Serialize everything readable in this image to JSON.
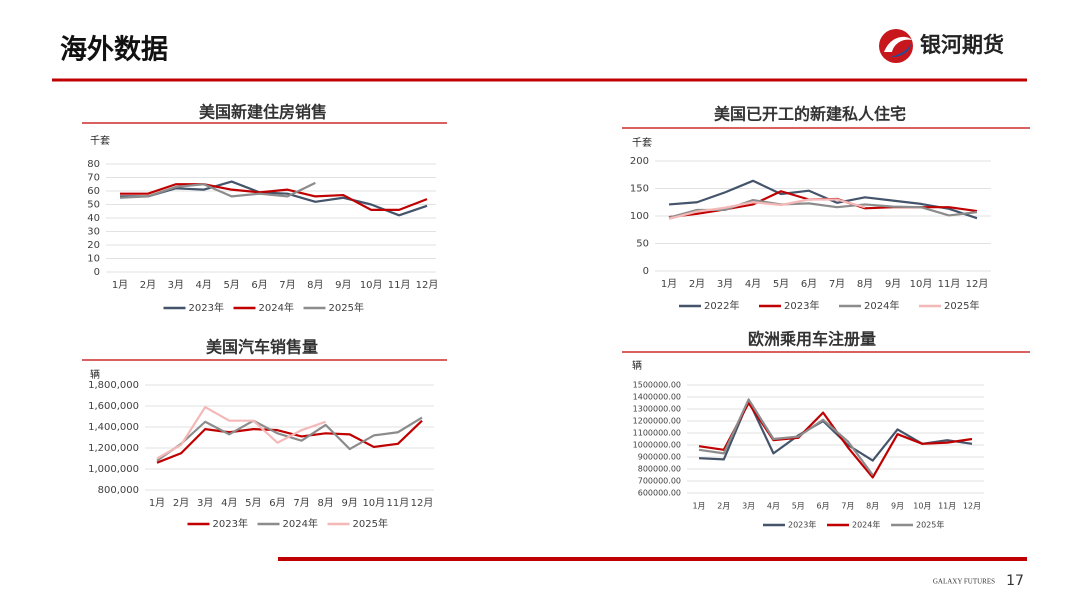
{
  "header": {
    "title": "海外数据",
    "logo": "银河期货"
  },
  "footer": {
    "brand": "GALAXY FUTURES",
    "page": 17
  },
  "chart_data": [
    {
      "type": "line",
      "title": "美国新建住房销售",
      "y_unit": "千套",
      "categories": [
        "1月",
        "2月",
        "3月",
        "4月",
        "5月",
        "6月",
        "7月",
        "8月",
        "9月",
        "10月",
        "11月",
        "12月"
      ],
      "ylim": [
        0,
        80
      ],
      "yticks": [
        0,
        10,
        20,
        30,
        40,
        50,
        60,
        70,
        80
      ],
      "grid": true,
      "series": [
        {
          "name": "2023年",
          "color": "#44546a",
          "values": [
            56,
            56,
            62,
            61,
            67,
            59,
            58,
            52,
            55,
            50,
            42,
            49
          ]
        },
        {
          "name": "2024年",
          "color": "#c00000",
          "values": [
            58,
            58,
            65,
            65,
            61,
            59,
            61,
            56,
            57,
            46,
            46,
            54
          ]
        },
        {
          "name": "2025年",
          "color": "#8c8c8c",
          "values": [
            55,
            56,
            63,
            65,
            56,
            58,
            56,
            66,
            null,
            null,
            null,
            null
          ]
        }
      ]
    },
    {
      "type": "line",
      "title": "美国已开工的新建私人住宅",
      "y_unit": "千套",
      "categories": [
        "1月",
        "2月",
        "3月",
        "4月",
        "5月",
        "6月",
        "7月",
        "8月",
        "9月",
        "10月",
        "11月",
        "12月"
      ],
      "ylim": [
        0,
        200
      ],
      "yticks": [
        0,
        50,
        100,
        150,
        200
      ],
      "grid": true,
      "series": [
        {
          "name": "2022年",
          "color": "#44546a",
          "values": [
            121,
            125,
            143,
            164,
            140,
            146,
            124,
            134,
            128,
            122,
            113,
            96
          ]
        },
        {
          "name": "2023年",
          "color": "#c00000",
          "values": [
            98,
            104,
            112,
            121,
            145,
            130,
            131,
            114,
            116,
            116,
            116,
            109
          ]
        },
        {
          "name": "2024年",
          "color": "#8c8c8c",
          "values": [
            97,
            111,
            111,
            129,
            121,
            123,
            116,
            121,
            117,
            116,
            101,
            107
          ]
        },
        {
          "name": "2025年",
          "color": "#f4b8b8",
          "values": [
            95,
            108,
            115,
            125,
            120,
            130,
            130,
            116,
            null,
            null,
            null,
            null
          ]
        }
      ]
    },
    {
      "type": "line",
      "title": "美国汽车销售量",
      "y_unit": "辆",
      "categories": [
        "1月",
        "2月",
        "3月",
        "4月",
        "5月",
        "6月",
        "7月",
        "8月",
        "9月",
        "10月",
        "11月",
        "12月"
      ],
      "ylim": [
        800000,
        1800000
      ],
      "yticks": [
        {
          "value": 800000,
          "label": "800,000"
        },
        {
          "value": 1000000,
          "label": "1,000,000"
        },
        {
          "value": 1200000,
          "label": "1,200,000"
        },
        {
          "value": 1400000,
          "label": "1,400,000"
        },
        {
          "value": 1600000,
          "label": "1,600,000"
        },
        {
          "value": 1800000,
          "label": "1,800,000"
        }
      ],
      "grid": true,
      "series": [
        {
          "name": "2023年",
          "color": "#c00000",
          "values": [
            1060000,
            1150000,
            1380000,
            1350000,
            1380000,
            1370000,
            1310000,
            1340000,
            1330000,
            1210000,
            1240000,
            1460000
          ]
        },
        {
          "name": "2024年",
          "color": "#8c8c8c",
          "values": [
            1080000,
            1240000,
            1450000,
            1330000,
            1460000,
            1340000,
            1270000,
            1420000,
            1190000,
            1320000,
            1350000,
            1490000
          ]
        },
        {
          "name": "2025年",
          "color": "#f4b8b8",
          "values": [
            1100000,
            1230000,
            1590000,
            1460000,
            1460000,
            1250000,
            1370000,
            1450000,
            null,
            null,
            null,
            null
          ]
        }
      ]
    },
    {
      "type": "line",
      "title": "欧洲乘用车注册量",
      "y_unit": "辆",
      "categories": [
        "1月",
        "2月",
        "3月",
        "4月",
        "5月",
        "6月",
        "7月",
        "8月",
        "9月",
        "10月",
        "11月",
        "12月"
      ],
      "ylim": [
        600000,
        1500000
      ],
      "yticks": [
        {
          "value": 600000,
          "label": "600000.00"
        },
        {
          "value": 700000,
          "label": "700000.00"
        },
        {
          "value": 800000,
          "label": "800000.00"
        },
        {
          "value": 900000,
          "label": "900000.00"
        },
        {
          "value": 1000000,
          "label": "1000000.00"
        },
        {
          "value": 1100000,
          "label": "1100000.00"
        },
        {
          "value": 1200000,
          "label": "1200000.00"
        },
        {
          "value": 1300000,
          "label": "1300000.00"
        },
        {
          "value": 1400000,
          "label": "1400000.00"
        },
        {
          "value": 1500000,
          "label": "1500000.00"
        }
      ],
      "grid": true,
      "series": [
        {
          "name": "2023年",
          "color": "#44546a",
          "values": [
            890000,
            880000,
            1370000,
            930000,
            1080000,
            1200000,
            1000000,
            870000,
            1130000,
            1010000,
            1040000,
            1010000
          ]
        },
        {
          "name": "2024年",
          "color": "#c00000",
          "values": [
            990000,
            960000,
            1350000,
            1040000,
            1060000,
            1270000,
            980000,
            730000,
            1090000,
            1010000,
            1020000,
            1050000
          ]
        },
        {
          "name": "2025年",
          "color": "#8c8c8c",
          "values": [
            960000,
            930000,
            1380000,
            1050000,
            1070000,
            1210000,
            1030000,
            750000,
            null,
            null,
            null,
            null
          ]
        }
      ]
    }
  ]
}
